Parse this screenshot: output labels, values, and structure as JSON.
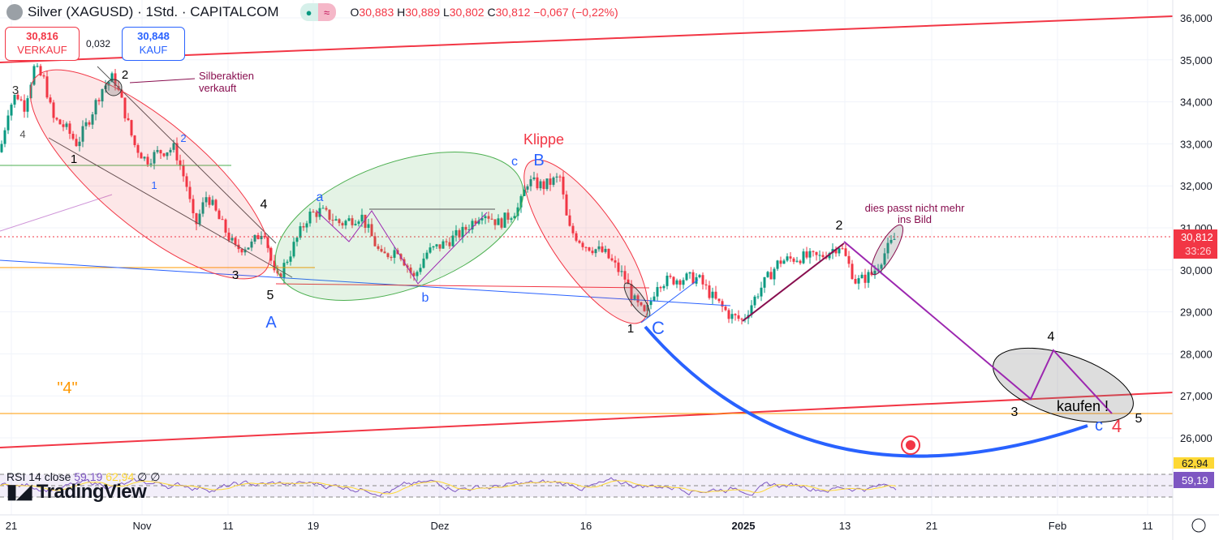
{
  "header": {
    "title": "Silver (XAGUSD) · 1Std. · CAPITALCOM",
    "status_icon": "≈",
    "o_label": "O",
    "o": "30,883",
    "h_label": "H",
    "h": "30,889",
    "l_label": "L",
    "l": "30,802",
    "c_label": "C",
    "c": "30,812",
    "change": "−0,067 (−0,22%)"
  },
  "trade": {
    "sell_price": "30,816",
    "sell_label": "VERKAUF",
    "spread": "0,032",
    "buy_price": "30,848",
    "buy_label": "KAUF"
  },
  "rsi": {
    "label": "RSI 14 close",
    "value": "59,19",
    "ma": "62,94",
    "n1": "∅",
    "n2": "∅"
  },
  "brand": "TradingView",
  "price_tag": {
    "price": "30,812",
    "countdown": "33:26"
  },
  "annotations": {
    "silber": "Silberaktien",
    "verkauft": "verkauft",
    "klippe": "Klippe",
    "passt1": "dies passt nicht mehr",
    "passt2": "ins Bild",
    "kaufen": "kaufen !",
    "four_q": "\"4\"",
    "w": [
      "3",
      "4",
      "1",
      "2",
      "1",
      "2",
      "4",
      "3",
      "5",
      "A",
      "a",
      "b",
      "c",
      "B",
      "1",
      "C",
      "2",
      "4",
      "3",
      "5",
      "c",
      "4"
    ]
  },
  "colors": {
    "up": "#089981",
    "down": "#f23645",
    "rsi": "#7e57c2",
    "rsi_ma": "#fdd835",
    "accent": "#2962ff"
  },
  "chart_data": {
    "type": "candlestick",
    "title": "Silver (XAGUSD) 1h",
    "ylim": [
      25.6,
      36.3
    ],
    "y_ticks": [
      "36,000",
      "35,000",
      "34,000",
      "33,000",
      "32,000",
      "31,000",
      "30,000",
      "29,000",
      "28,000",
      "27,000",
      "26,000"
    ],
    "y_tick_values": [
      36,
      35,
      34,
      33,
      32,
      31,
      30,
      29,
      28,
      27,
      26
    ],
    "x_ticks": [
      {
        "label": "21",
        "bar": 14
      },
      {
        "label": "Nov",
        "bar": 175
      },
      {
        "label": "11",
        "bar": 281
      },
      {
        "label": "19",
        "bar": 386
      },
      {
        "label": "Dez",
        "bar": 542
      },
      {
        "label": "16",
        "bar": 722
      },
      {
        "label": "2025",
        "bar": 916
      },
      {
        "label": "13",
        "bar": 1041
      },
      {
        "label": "21",
        "bar": 1148
      },
      {
        "label": "Feb",
        "bar": 1303
      },
      {
        "label": "11",
        "bar": 1414
      }
    ],
    "price_path": [
      [
        0,
        32.8
      ],
      [
        10,
        33.8
      ],
      [
        20,
        34.2
      ],
      [
        30,
        33.9
      ],
      [
        42,
        34.8
      ],
      [
        55,
        34.5
      ],
      [
        65,
        33.6
      ],
      [
        80,
        33.4
      ],
      [
        95,
        33.0
      ],
      [
        110,
        33.6
      ],
      [
        125,
        34.3
      ],
      [
        140,
        34.6
      ],
      [
        150,
        34.0
      ],
      [
        165,
        33.0
      ],
      [
        180,
        32.6
      ],
      [
        195,
        32.8
      ],
      [
        215,
        32.9
      ],
      [
        230,
        32.0
      ],
      [
        240,
        31.0
      ],
      [
        255,
        31.8
      ],
      [
        270,
        31.2
      ],
      [
        290,
        30.5
      ],
      [
        310,
        30.6
      ],
      [
        325,
        31.0
      ],
      [
        340,
        29.7
      ],
      [
        360,
        30.5
      ],
      [
        380,
        31.3
      ],
      [
        395,
        31.4
      ],
      [
        420,
        31.1
      ],
      [
        445,
        31.3
      ],
      [
        470,
        30.3
      ],
      [
        490,
        30.5
      ],
      [
        510,
        29.8
      ],
      [
        525,
        30.4
      ],
      [
        545,
        30.6
      ],
      [
        570,
        30.9
      ],
      [
        595,
        31.4
      ],
      [
        615,
        31.1
      ],
      [
        640,
        31.5
      ],
      [
        650,
        32.1
      ],
      [
        670,
        32.0
      ],
      [
        690,
        32.2
      ],
      [
        700,
        31.0
      ],
      [
        720,
        30.6
      ],
      [
        745,
        30.4
      ],
      [
        770,
        29.8
      ],
      [
        780,
        29.3
      ],
      [
        795,
        28.9
      ],
      [
        810,
        29.7
      ],
      [
        840,
        29.8
      ],
      [
        860,
        29.8
      ],
      [
        880,
        29.3
      ],
      [
        900,
        28.9
      ],
      [
        915,
        28.8
      ],
      [
        935,
        29.5
      ],
      [
        960,
        30.2
      ],
      [
        985,
        30.3
      ],
      [
        1010,
        30.3
      ],
      [
        1035,
        30.6
      ],
      [
        1055,
        29.7
      ],
      [
        1075,
        29.9
      ],
      [
        1090,
        30.4
      ],
      [
        1105,
        30.812
      ]
    ],
    "last_price": 30.812,
    "rsi_bands": [
      70,
      50,
      30
    ]
  }
}
